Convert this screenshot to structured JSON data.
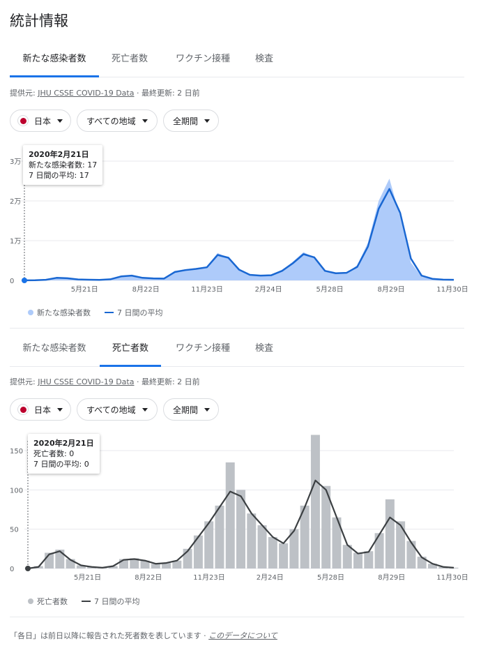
{
  "title": "統計情報",
  "tabs": [
    "新たな感染者数",
    "死亡者数",
    "ワクチン接種",
    "検査"
  ],
  "source": {
    "prefix": "提供元: ",
    "link": "JHU CSSE COVID-19 Data",
    "updated": " · 最終更新: 2 日前"
  },
  "filters": {
    "country": "日本",
    "region": "すべての地域",
    "period": "全期間"
  },
  "cases": {
    "tooltip": {
      "date": "2020年2月21日",
      "line1": "新たな感染者数: 17",
      "line2": "7 日間の平均: 17"
    },
    "legend": {
      "daily": "新たな感染者数",
      "avg": "7 日間の平均"
    },
    "colors": {
      "bars": "#aecbfa",
      "line": "#1967d2"
    }
  },
  "deaths": {
    "tooltip": {
      "date": "2020年2月21日",
      "line1": "死亡者数: 0",
      "line2": "7 日間の平均: 0"
    },
    "legend": {
      "daily": "死亡者数",
      "avg": "7 日間の平均"
    },
    "colors": {
      "bars": "#bdc1c6",
      "line": "#3c4043"
    }
  },
  "footer": {
    "note": "「各日」は前日以降に報告された死者数を表しています · ",
    "link": "このデータについて"
  },
  "chart_data": [
    {
      "type": "area",
      "x_labels": [
        "5月21日",
        "8月22日",
        "11月23日",
        "2月24日",
        "5月28日",
        "8月29日",
        "11月30日"
      ],
      "y_ticks": [
        "0",
        "1万",
        "2万",
        "3万"
      ],
      "ylim": [
        0,
        30000
      ],
      "series": [
        {
          "name": "新たな感染者数",
          "values": [
            17,
            50,
            200,
            800,
            600,
            250,
            180,
            150,
            300,
            1100,
            1300,
            600,
            500,
            450,
            2400,
            2800,
            3100,
            3500,
            6900,
            5600,
            2500,
            1300,
            1200,
            1400,
            2600,
            4700,
            7100,
            5800,
            2200,
            1800,
            1900,
            3800,
            9500,
            20000,
            25600,
            16000,
            4500,
            900,
            300,
            200,
            150
          ]
        },
        {
          "name": "7 日間の平均",
          "values": [
            17,
            40,
            150,
            650,
            550,
            250,
            180,
            140,
            280,
            1000,
            1200,
            650,
            500,
            450,
            2100,
            2600,
            2900,
            3300,
            6400,
            5700,
            2700,
            1400,
            1200,
            1300,
            2400,
            4300,
            6600,
            5800,
            2400,
            1800,
            1900,
            3400,
            8500,
            18000,
            23000,
            17000,
            5500,
            1200,
            400,
            200,
            150
          ]
        }
      ]
    },
    {
      "type": "area",
      "x_labels": [
        "5月21日",
        "8月22日",
        "11月23日",
        "2月24日",
        "5月28日",
        "8月29日",
        "11月30日"
      ],
      "y_ticks": [
        "0",
        "50",
        "100",
        "150"
      ],
      "ylim": [
        0,
        150
      ],
      "series": [
        {
          "name": "死亡者数",
          "values": [
            0,
            3,
            20,
            24,
            12,
            4,
            2,
            1,
            3,
            12,
            13,
            10,
            6,
            7,
            10,
            25,
            42,
            60,
            80,
            135,
            100,
            70,
            55,
            40,
            32,
            50,
            80,
            170,
            105,
            65,
            30,
            20,
            22,
            45,
            88,
            60,
            35,
            15,
            6,
            2,
            1
          ]
        },
        {
          "name": "7 日間の平均",
          "values": [
            0,
            2,
            18,
            22,
            11,
            4,
            2,
            1,
            3,
            11,
            12,
            10,
            6,
            7,
            10,
            22,
            40,
            58,
            78,
            98,
            92,
            70,
            55,
            40,
            32,
            48,
            78,
            112,
            100,
            65,
            30,
            19,
            21,
            43,
            65,
            55,
            33,
            14,
            6,
            2,
            1
          ]
        }
      ]
    }
  ]
}
